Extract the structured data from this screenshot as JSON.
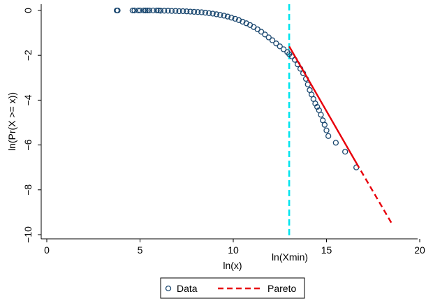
{
  "chart_data": {
    "type": "scatter",
    "xlabel": "ln(x)",
    "ylabel": "ln(Pr(X >= x))",
    "xlim": [
      0,
      20
    ],
    "ylim": [
      -10,
      0
    ],
    "x_ticks": [
      "0",
      "5",
      "10",
      "15",
      "20"
    ],
    "x_tick_values": [
      0,
      5,
      10,
      15,
      20
    ],
    "y_ticks": [
      "0",
      "−2",
      "−4",
      "−6",
      "−8",
      "−10"
    ],
    "y_tick_values": [
      0,
      -2,
      -4,
      -6,
      -8,
      -10
    ],
    "grid": false,
    "xmin_line": {
      "x": 13.0,
      "label": "ln(Xmin)",
      "color": "#00e5ee"
    },
    "series": [
      {
        "name": "Data",
        "marker": "hollow-circle",
        "color": "#1a476f",
        "points": [
          [
            3.75,
            0.0
          ],
          [
            3.8,
            0.0
          ],
          [
            4.6,
            0.0
          ],
          [
            4.7,
            0.0
          ],
          [
            4.9,
            0.0
          ],
          [
            5.0,
            0.0
          ],
          [
            5.2,
            0.0
          ],
          [
            5.3,
            0.0
          ],
          [
            5.4,
            0.0
          ],
          [
            5.5,
            0.0
          ],
          [
            5.7,
            0.0
          ],
          [
            5.9,
            0.0
          ],
          [
            6.0,
            0.0
          ],
          [
            6.1,
            -0.01
          ],
          [
            6.3,
            -0.01
          ],
          [
            6.5,
            -0.01
          ],
          [
            6.7,
            -0.02
          ],
          [
            6.9,
            -0.02
          ],
          [
            7.1,
            -0.03
          ],
          [
            7.3,
            -0.03
          ],
          [
            7.5,
            -0.04
          ],
          [
            7.7,
            -0.05
          ],
          [
            7.9,
            -0.06
          ],
          [
            8.1,
            -0.07
          ],
          [
            8.3,
            -0.08
          ],
          [
            8.5,
            -0.1
          ],
          [
            8.7,
            -0.12
          ],
          [
            8.9,
            -0.14
          ],
          [
            9.1,
            -0.17
          ],
          [
            9.3,
            -0.2
          ],
          [
            9.5,
            -0.23
          ],
          [
            9.7,
            -0.27
          ],
          [
            9.9,
            -0.32
          ],
          [
            10.1,
            -0.37
          ],
          [
            10.3,
            -0.43
          ],
          [
            10.5,
            -0.5
          ],
          [
            10.7,
            -0.57
          ],
          [
            10.9,
            -0.65
          ],
          [
            11.1,
            -0.74
          ],
          [
            11.3,
            -0.84
          ],
          [
            11.5,
            -0.95
          ],
          [
            11.7,
            -1.07
          ],
          [
            11.9,
            -1.2
          ],
          [
            12.1,
            -1.33
          ],
          [
            12.3,
            -1.47
          ],
          [
            12.5,
            -1.6
          ],
          [
            12.7,
            -1.73
          ],
          [
            12.9,
            -1.86
          ],
          [
            13.0,
            -1.95
          ],
          [
            13.15,
            -2.05
          ],
          [
            13.3,
            -2.2
          ],
          [
            13.45,
            -2.4
          ],
          [
            13.6,
            -2.6
          ],
          [
            13.75,
            -2.8
          ],
          [
            13.9,
            -3.05
          ],
          [
            14.0,
            -3.3
          ],
          [
            14.1,
            -3.55
          ],
          [
            14.2,
            -3.75
          ],
          [
            14.3,
            -3.95
          ],
          [
            14.4,
            -4.15
          ],
          [
            14.5,
            -4.3
          ],
          [
            14.6,
            -4.45
          ],
          [
            14.7,
            -4.65
          ],
          [
            14.8,
            -4.9
          ],
          [
            14.9,
            -5.1
          ],
          [
            15.0,
            -5.35
          ],
          [
            15.1,
            -5.6
          ],
          [
            15.5,
            -5.9
          ],
          [
            16.0,
            -6.3
          ],
          [
            16.6,
            -7.0
          ]
        ]
      },
      {
        "name": "Pareto",
        "line": "dashed",
        "color": "#e8000b",
        "solid_segment": [
          [
            13.0,
            -1.6
          ],
          [
            16.6,
            -6.8
          ]
        ],
        "dashed_segment": [
          [
            16.6,
            -6.8
          ],
          [
            18.5,
            -9.5
          ]
        ]
      }
    ]
  },
  "legend": {
    "placement": "bottom-center",
    "items": [
      {
        "label": "Data",
        "symbol": "hollow-circle-icon"
      },
      {
        "label": "Pareto",
        "symbol": "dashed-line-icon"
      }
    ]
  }
}
